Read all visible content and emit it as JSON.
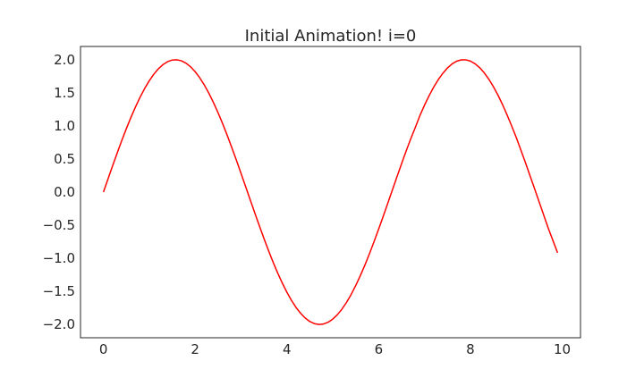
{
  "chart_data": {
    "type": "line",
    "title": "Initial Animation! i=0",
    "xlabel": "",
    "ylabel": "",
    "xlim": [
      -0.5,
      10.4
    ],
    "ylim": [
      -2.2,
      2.2
    ],
    "grid": false,
    "x_ticks": [
      0,
      2,
      4,
      6,
      8,
      10
    ],
    "x_tick_labels": [
      "0",
      "2",
      "4",
      "6",
      "8",
      "10"
    ],
    "y_ticks": [
      2.0,
      1.5,
      1.0,
      0.5,
      0.0,
      -0.5,
      -1.0,
      -1.5,
      -2.0
    ],
    "y_tick_labels": [
      "2.0",
      "1.5",
      "1.0",
      "0.5",
      "0.0",
      "−0.5",
      "−1.0",
      "−1.5",
      "−2.0"
    ],
    "series": [
      {
        "color": "#ff0000",
        "x": [
          0.0,
          0.1,
          0.2,
          0.3,
          0.4,
          0.5,
          0.6,
          0.7,
          0.8,
          0.9,
          1.0,
          1.1,
          1.2,
          1.3,
          1.4,
          1.5,
          1.6,
          1.7,
          1.8,
          1.9,
          2.0,
          2.1,
          2.2,
          2.3,
          2.4,
          2.5,
          2.6,
          2.7,
          2.8,
          2.9,
          3.0,
          3.1,
          3.2,
          3.3,
          3.4,
          3.5,
          3.6,
          3.7,
          3.8,
          3.9,
          4.0,
          4.1,
          4.2,
          4.3,
          4.4,
          4.5,
          4.6,
          4.7,
          4.8,
          4.9,
          5.0,
          5.1,
          5.2,
          5.3,
          5.4,
          5.5,
          5.6,
          5.7,
          5.8,
          5.9,
          6.0,
          6.1,
          6.2,
          6.3,
          6.4,
          6.5,
          6.6,
          6.7,
          6.8,
          6.9,
          7.0,
          7.1,
          7.2,
          7.3,
          7.4,
          7.5,
          7.6,
          7.7,
          7.8,
          7.9,
          8.0,
          8.1,
          8.2,
          8.3,
          8.4,
          8.5,
          8.6,
          8.7,
          8.8,
          8.9,
          9.0,
          9.1,
          9.2,
          9.3,
          9.4,
          9.5,
          9.6,
          9.7,
          9.8,
          9.9
        ],
        "y": [
          0.0,
          0.1997,
          0.3973,
          0.591,
          0.7788,
          0.9589,
          1.1293,
          1.2884,
          1.4347,
          1.5667,
          1.6829,
          1.7824,
          1.8641,
          1.9271,
          1.9709,
          1.995,
          1.9991,
          1.9833,
          1.9477,
          1.8926,
          1.8186,
          1.7264,
          1.617,
          1.4913,
          1.3509,
          1.1969,
          1.0311,
          0.8547,
          0.67,
          0.4785,
          0.2822,
          0.0831,
          -0.1167,
          -0.3155,
          -0.5106,
          -0.7016,
          -0.8851,
          -1.0601,
          -1.2237,
          -1.3752,
          -1.5136,
          -1.6365,
          -1.7432,
          -1.8321,
          -1.9032,
          -1.955,
          -1.9873,
          -1.9998,
          -1.9923,
          -1.9649,
          -1.9178,
          -1.8517,
          -1.7671,
          -1.6651,
          -1.5466,
          -1.4112,
          -1.2632,
          -1.1023,
          -0.93,
          -0.7473,
          -0.5588,
          -0.3636,
          -0.1662,
          0.0336,
          0.2326,
          0.4303,
          0.6223,
          0.8067,
          0.9788,
          1.1573,
          1.314,
          1.4566,
          1.586,
          1.6996,
          1.7958,
          1.8759,
          1.9362,
          1.977,
          1.9971,
          1.9981,
          1.9787,
          1.9394,
          1.8806,
          1.8033,
          1.7071,
          1.5947,
          1.466,
          1.3225,
          1.1653,
          0.9985,
          0.8242,
          0.6355,
          0.4454,
          0.2466,
          0.0485,
          -0.1503,
          -0.3509,
          -0.55,
          -0.7329,
          -0.9163
        ]
      }
    ]
  }
}
